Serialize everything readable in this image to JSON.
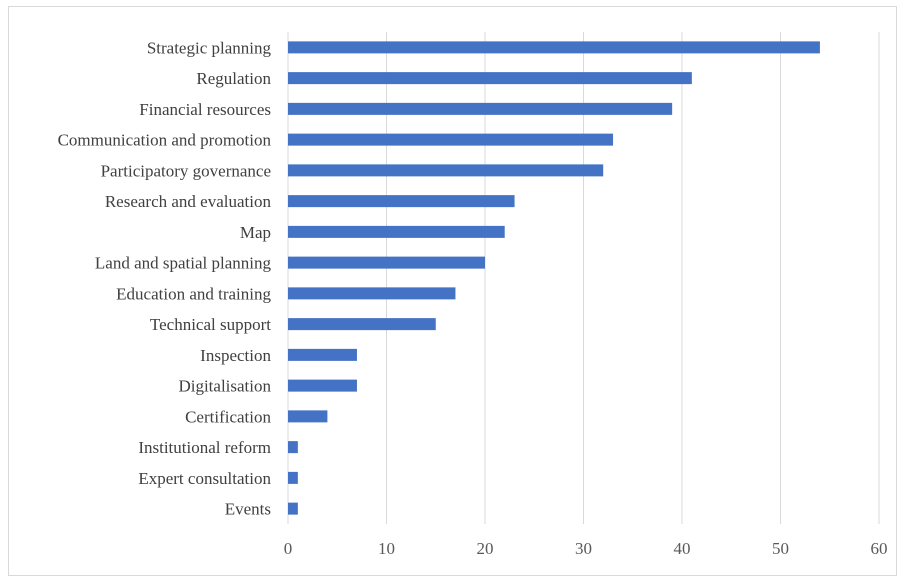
{
  "chart_data": {
    "type": "bar",
    "orientation": "horizontal",
    "categories": [
      "Strategic planning",
      "Regulation",
      "Financial resources",
      "Communication and promotion",
      "Participatory governance",
      "Research and evaluation",
      "Map",
      "Land and spatial planning",
      "Education and training",
      "Technical support",
      "Inspection",
      "Digitalisation",
      "Certification",
      "Institutional reform",
      "Expert consultation",
      "Events"
    ],
    "values": [
      54,
      41,
      39,
      33,
      32,
      23,
      22,
      20,
      17,
      15,
      7,
      7,
      4,
      1,
      1,
      1
    ],
    "xlim": [
      0,
      60
    ],
    "xticks": [
      "0",
      "10",
      "20",
      "30",
      "40",
      "50",
      "60"
    ],
    "grid": true,
    "legend": "none",
    "colors": {
      "bar": "#4472c4",
      "grid": "#d9d9d9",
      "text": "#404040"
    }
  }
}
